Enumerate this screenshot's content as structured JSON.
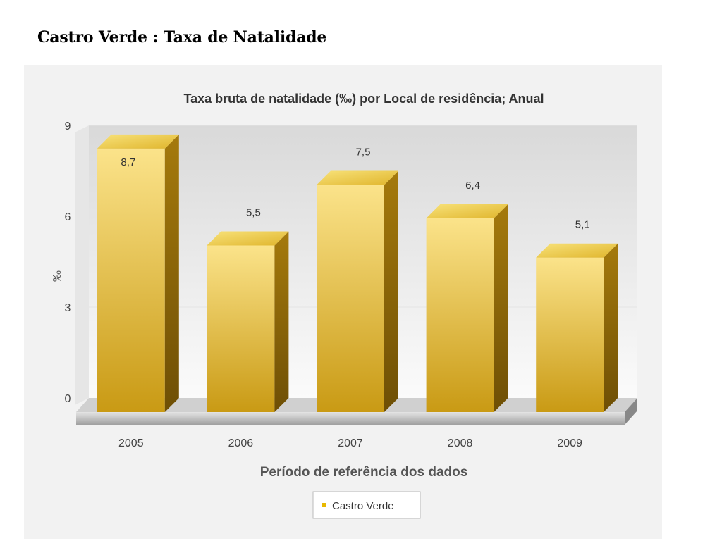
{
  "page": {
    "title": "Castro Verde : Taxa de Natalidade"
  },
  "colors": {
    "bar_front_top": "#fbe38a",
    "bar_front_bottom": "#c99a14",
    "bar_side": "#8a6408",
    "bar_top": "#f4d45a",
    "panel_bg": "#f2f2f2",
    "legend_marker": "#e8b800"
  },
  "chart_data": {
    "type": "bar",
    "title": "Taxa bruta de natalidade (‰) por Local de residência; Anual",
    "xlabel": "Período de referência dos dados",
    "ylabel": "‰",
    "categories": [
      "2005",
      "2006",
      "2007",
      "2008",
      "2009"
    ],
    "series": [
      {
        "name": "Castro Verde",
        "values": [
          8.7,
          5.5,
          7.5,
          6.4,
          5.1
        ],
        "value_labels": [
          "8,7",
          "5,5",
          "7,5",
          "6,4",
          "5,1"
        ]
      }
    ],
    "ylim": [
      0,
      9
    ],
    "yticks": [
      "0",
      "3",
      "6",
      "9"
    ],
    "grid": true,
    "legend_position": "bottom-center",
    "bar_style": "3d"
  }
}
